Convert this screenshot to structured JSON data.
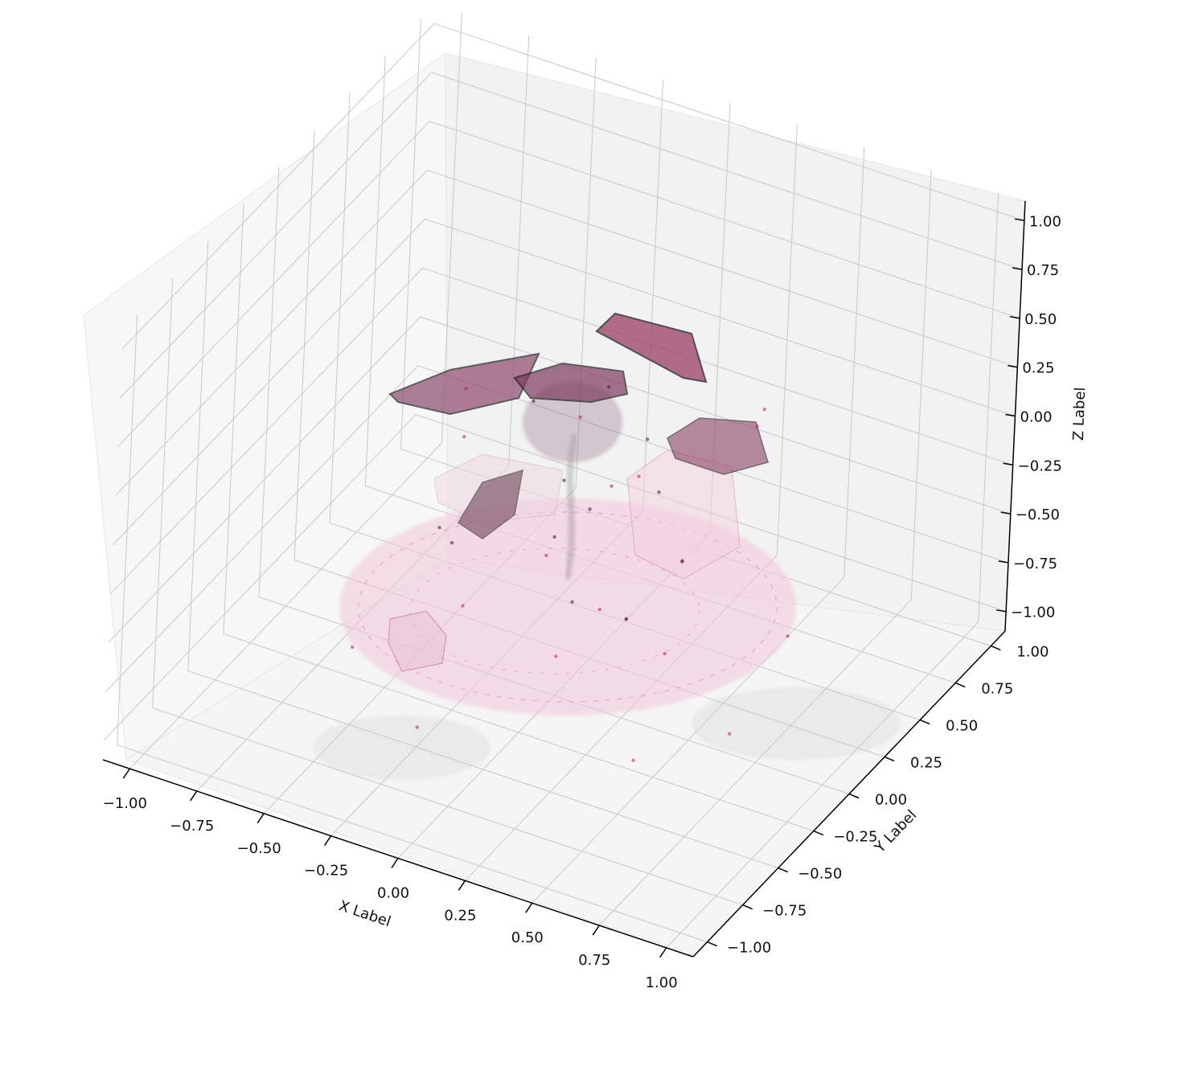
{
  "chart_data": {
    "type": "scatter",
    "projection": "3d",
    "title": "",
    "xlabel": "X Label",
    "ylabel": "Y Label",
    "zlabel": "Z Label",
    "xlim": [
      -1.1,
      1.1
    ],
    "ylim": [
      -1.1,
      1.1
    ],
    "zlim": [
      -1.1,
      1.1
    ],
    "grid": true,
    "legend": "none",
    "x_ticks": [
      "−1.00",
      "−0.75",
      "−0.50",
      "−0.25",
      "0.00",
      "0.25",
      "0.50",
      "0.75",
      "1.00"
    ],
    "y_ticks": [
      "−1.00",
      "−0.75",
      "−0.50",
      "−0.25",
      "0.00",
      "0.25",
      "0.50",
      "0.75",
      "1.00"
    ],
    "z_ticks": [
      "−1.00",
      "−0.75",
      "−0.50",
      "−0.25",
      "0.00",
      "0.25",
      "0.50",
      "0.75",
      "1.00"
    ],
    "x_tick_values": [
      -1,
      -0.75,
      -0.5,
      -0.25,
      0,
      0.25,
      0.5,
      0.75,
      1
    ],
    "y_tick_values": [
      -1,
      -0.75,
      -0.5,
      -0.25,
      0,
      0.25,
      0.5,
      0.75,
      1
    ],
    "z_tick_values": [
      -1,
      -0.75,
      -0.5,
      -0.25,
      0,
      0.25,
      0.5,
      0.75,
      1
    ],
    "series": [
      {
        "color": "#c2185b",
        "points": [
          [
            0,
            0,
            -0.9
          ],
          [
            0.3,
            0.2,
            -0.9
          ],
          [
            -0.4,
            0.1,
            -0.9
          ],
          [
            0.5,
            -0.4,
            -0.9
          ],
          [
            -0.2,
            -0.6,
            -0.9
          ],
          [
            0.6,
            0.5,
            -0.9
          ],
          [
            -0.6,
            -0.3,
            -0.9
          ],
          [
            0.1,
            0.7,
            -0.9
          ],
          [
            -0.3,
            0.5,
            -0.9
          ],
          [
            0.7,
            -0.1,
            -0.9
          ],
          [
            0.15,
            0.25,
            -0.1
          ],
          [
            -0.1,
            0.3,
            0.05
          ],
          [
            0.2,
            -0.05,
            0.1
          ],
          [
            0.55,
            0.35,
            0.35
          ],
          [
            0.6,
            0.2,
            0.4
          ],
          [
            -0.4,
            0.05,
            0.25
          ],
          [
            -0.3,
            -0.15,
            0.2
          ],
          [
            0.5,
            -0.5,
            -0.1
          ],
          [
            0.45,
            -0.6,
            0.0
          ]
        ]
      },
      {
        "color": "#222222",
        "points": [
          [
            0,
            0,
            0.0
          ],
          [
            0.05,
            0.1,
            -0.2
          ],
          [
            -0.05,
            0.05,
            -0.35
          ],
          [
            0.1,
            -0.1,
            -0.5
          ],
          [
            0.2,
            0.2,
            0.15
          ],
          [
            -0.2,
            0.15,
            0.2
          ],
          [
            0.0,
            0.3,
            0.25
          ],
          [
            0.35,
            0.0,
            0.1
          ],
          [
            0.4,
            -0.3,
            -0.3
          ],
          [
            -0.35,
            -0.2,
            -0.25
          ],
          [
            0.25,
            0.4,
            -0.6
          ],
          [
            -0.5,
            0.2,
            -0.7
          ]
        ]
      }
    ]
  }
}
